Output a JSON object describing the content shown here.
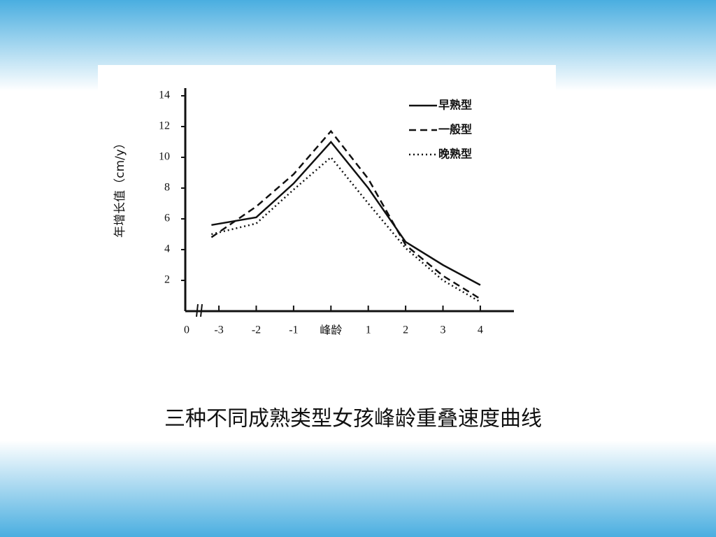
{
  "chart_data": {
    "type": "line",
    "caption": "三种不同成熟类型女孩峰龄重叠速度曲线",
    "y_label": "年增长值（cm/y）",
    "origin_label": "0",
    "x": [
      -3.2,
      -2,
      -1,
      0,
      1,
      2,
      3,
      4
    ],
    "series": [
      {
        "name": "早熟型",
        "color": "#111111",
        "dash": "solid",
        "values": [
          5.6,
          6.1,
          8.3,
          11.0,
          8.0,
          4.5,
          3.0,
          1.7
        ]
      },
      {
        "name": "一般型",
        "color": "#111111",
        "dash": "dashed",
        "values": [
          4.8,
          6.8,
          8.9,
          11.7,
          8.6,
          4.3,
          2.3,
          0.8
        ]
      },
      {
        "name": "晚熟型",
        "color": "#111111",
        "dash": "dotted",
        "values": [
          5.0,
          5.7,
          7.9,
          10.0,
          7.0,
          4.1,
          2.0,
          0.6
        ]
      }
    ],
    "xlim": [
      -3.9,
      4.9
    ],
    "ylim": [
      0,
      14.5
    ],
    "xticks": [
      -3,
      -2,
      -1,
      {
        "value": 0,
        "label": "峰龄"
      },
      1,
      2,
      3,
      4
    ],
    "yticks": [
      2,
      4,
      6,
      8,
      10,
      12,
      14
    ],
    "legend": "upper right",
    "grid": false
  }
}
